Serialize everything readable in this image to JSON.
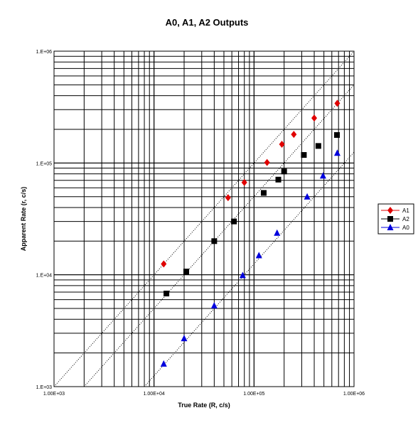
{
  "chart_data": {
    "type": "scatter",
    "title": "A0, A1, A2 Outputs",
    "xlabel": "True Rate (R, c/s)",
    "ylabel": "Apparent Rate (r, c/s)",
    "xscale": "log",
    "yscale": "log",
    "xlim": [
      1000,
      1000000
    ],
    "ylim": [
      1000,
      1000000
    ],
    "x_tick_labels": [
      "1.00E+03",
      "1.00E+04",
      "1.00E+05",
      "1.00E+06"
    ],
    "y_tick_labels": [
      "1.E+03",
      "1.E+04",
      "1.E+05",
      "1.E+06"
    ],
    "grid": true,
    "legend_position": "right",
    "series": [
      {
        "name": "A1",
        "color": "#e00000",
        "marker": "diamond",
        "points": [
          [
            12500,
            12500
          ],
          [
            55000,
            49000
          ],
          [
            80000,
            67000
          ],
          [
            135000,
            101000
          ],
          [
            190000,
            147000
          ],
          [
            250000,
            180000
          ],
          [
            400000,
            252000
          ],
          [
            680000,
            342000
          ]
        ]
      },
      {
        "name": "A2",
        "color": "#000000",
        "marker": "square",
        "points": [
          [
            13300,
            6800
          ],
          [
            21000,
            10700
          ],
          [
            40000,
            20000
          ],
          [
            63000,
            30000
          ],
          [
            125000,
            54000
          ],
          [
            175000,
            71000
          ],
          [
            200000,
            84000
          ],
          [
            315000,
            118000
          ],
          [
            440000,
            142000
          ],
          [
            675000,
            178000
          ]
        ]
      },
      {
        "name": "A0",
        "color": "#0000dd",
        "marker": "triangle",
        "points": [
          [
            12500,
            1600
          ],
          [
            20000,
            2700
          ],
          [
            40000,
            5300
          ],
          [
            77000,
            9900
          ],
          [
            112000,
            14900
          ],
          [
            170000,
            23700
          ],
          [
            340000,
            50000
          ],
          [
            490000,
            77000
          ],
          [
            680000,
            123000
          ]
        ]
      }
    ],
    "reference_lines": [
      {
        "style": "dotted",
        "color": "#000000",
        "points": [
          [
            1000,
            1000
          ],
          [
            1000000,
            1000000
          ]
        ]
      },
      {
        "style": "dotted",
        "color": "#000000",
        "points": [
          [
            2000,
            1000
          ],
          [
            1000000,
            500000
          ]
        ]
      },
      {
        "style": "dotted",
        "color": "#000000",
        "points": [
          [
            8000,
            1000
          ],
          [
            1000000,
            125000
          ]
        ]
      }
    ]
  }
}
